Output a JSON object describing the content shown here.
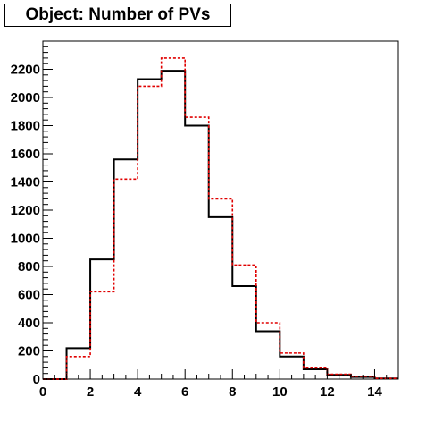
{
  "chart_data": {
    "type": "histogram",
    "title": "Object: Number of PVs",
    "xlabel": "",
    "ylabel": "",
    "xlim": [
      0,
      15
    ],
    "ylim": [
      0,
      2400
    ],
    "bin_edges": [
      0,
      1,
      2,
      3,
      4,
      5,
      6,
      7,
      8,
      9,
      10,
      11,
      12,
      13,
      14,
      15
    ],
    "x_ticks": [
      0,
      2,
      4,
      6,
      8,
      10,
      12,
      14
    ],
    "y_ticks": [
      0,
      200,
      400,
      600,
      800,
      1000,
      1200,
      1400,
      1600,
      1800,
      2000,
      2200
    ],
    "grid": false,
    "series": [
      {
        "style": "solid",
        "color": "#000000",
        "values": [
          0,
          220,
          850,
          1560,
          2130,
          2190,
          1800,
          1150,
          660,
          340,
          160,
          70,
          30,
          15,
          5
        ]
      },
      {
        "style": "dashed",
        "color": "#e00000",
        "values": [
          0,
          160,
          620,
          1420,
          2080,
          2280,
          1860,
          1280,
          810,
          400,
          185,
          80,
          35,
          20,
          5
        ]
      }
    ]
  }
}
